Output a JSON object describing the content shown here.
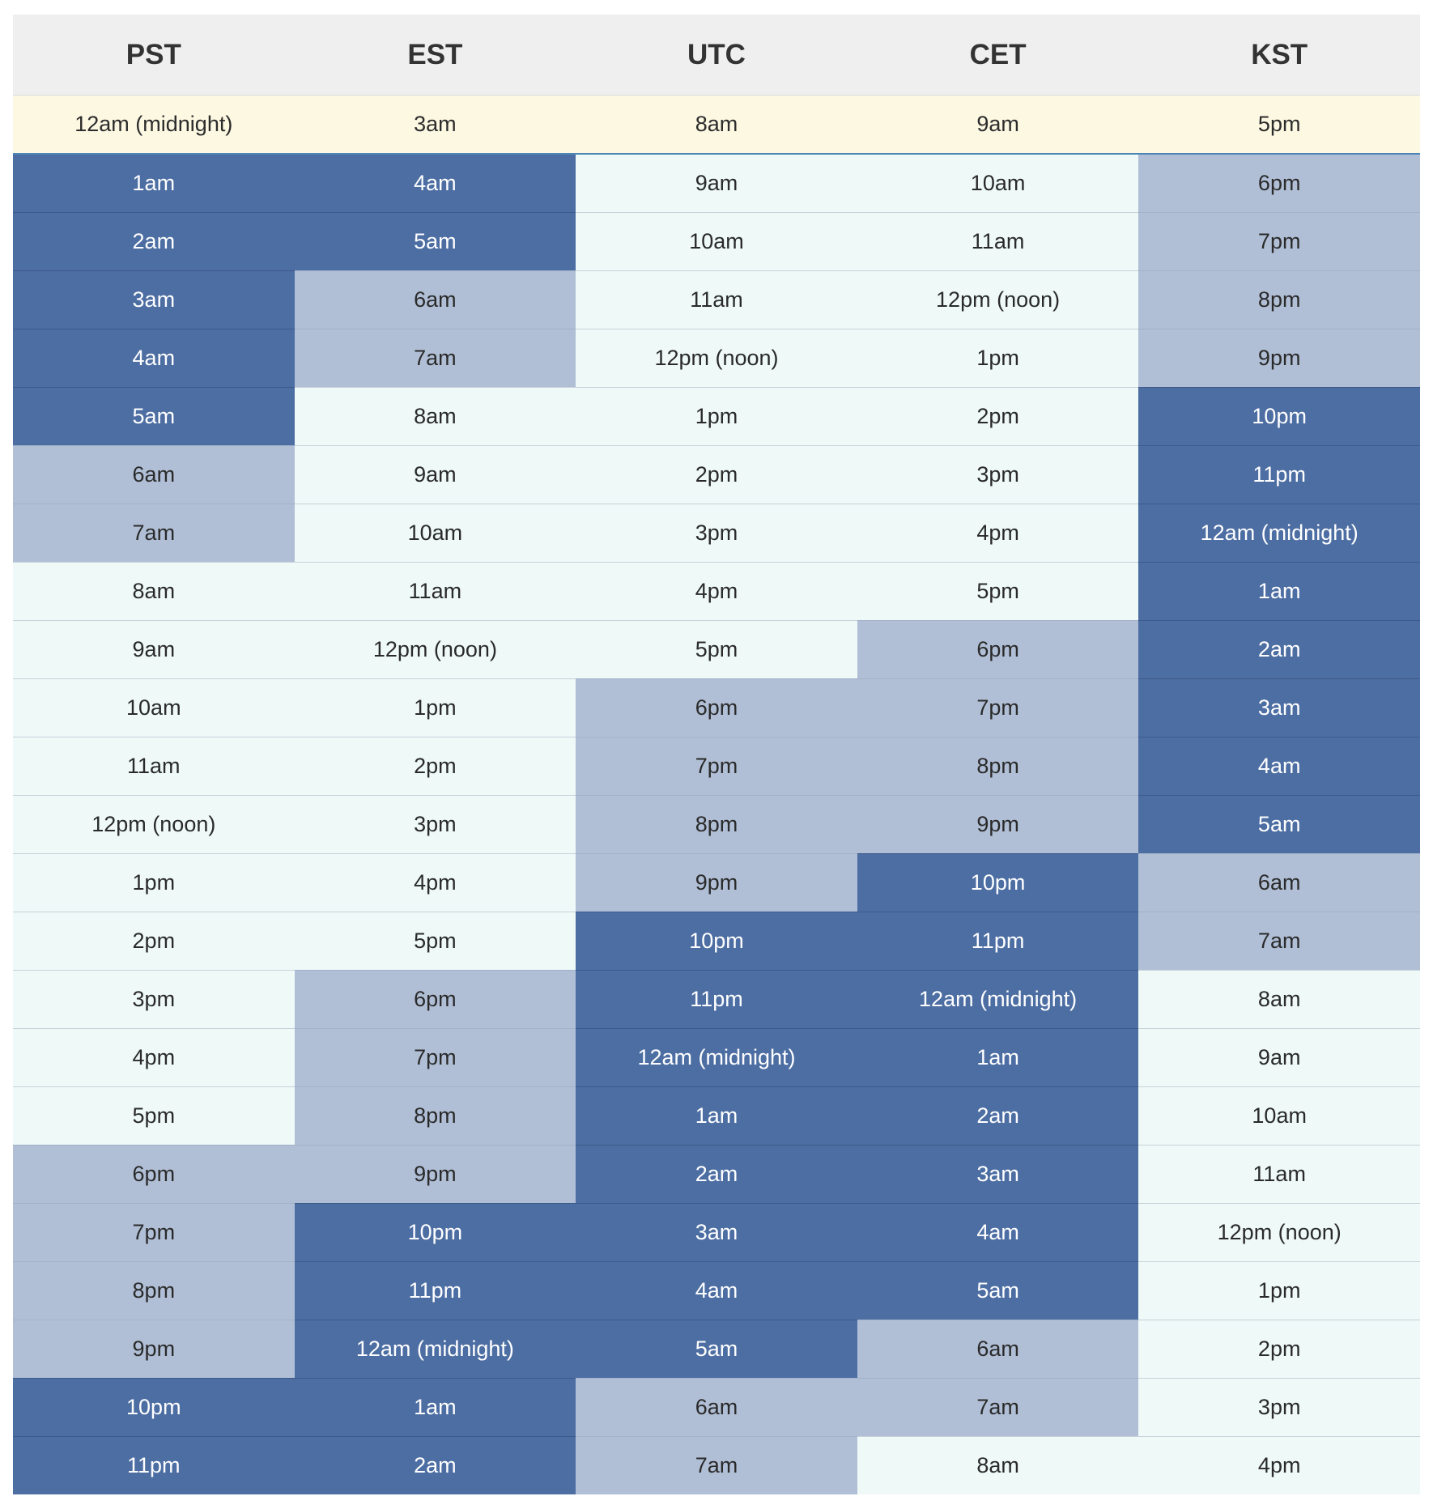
{
  "table": {
    "headers": [
      "PST",
      "EST",
      "UTC",
      "CET",
      "KST"
    ],
    "highlight_row": 0,
    "rows": [
      [
        "12am (midnight)",
        "3am",
        "8am",
        "9am",
        "5pm"
      ],
      [
        "1am",
        "4am",
        "9am",
        "10am",
        "6pm"
      ],
      [
        "2am",
        "5am",
        "10am",
        "11am",
        "7pm"
      ],
      [
        "3am",
        "6am",
        "11am",
        "12pm (noon)",
        "8pm"
      ],
      [
        "4am",
        "7am",
        "12pm (noon)",
        "1pm",
        "9pm"
      ],
      [
        "5am",
        "8am",
        "1pm",
        "2pm",
        "10pm"
      ],
      [
        "6am",
        "9am",
        "2pm",
        "3pm",
        "11pm"
      ],
      [
        "7am",
        "10am",
        "3pm",
        "4pm",
        "12am (midnight)"
      ],
      [
        "8am",
        "11am",
        "4pm",
        "5pm",
        "1am"
      ],
      [
        "9am",
        "12pm (noon)",
        "5pm",
        "6pm",
        "2am"
      ],
      [
        "10am",
        "1pm",
        "6pm",
        "7pm",
        "3am"
      ],
      [
        "11am",
        "2pm",
        "7pm",
        "8pm",
        "4am"
      ],
      [
        "12pm (noon)",
        "3pm",
        "8pm",
        "9pm",
        "5am"
      ],
      [
        "1pm",
        "4pm",
        "9pm",
        "10pm",
        "6am"
      ],
      [
        "2pm",
        "5pm",
        "10pm",
        "11pm",
        "7am"
      ],
      [
        "3pm",
        "6pm",
        "11pm",
        "12am (midnight)",
        "8am"
      ],
      [
        "4pm",
        "7pm",
        "12am (midnight)",
        "1am",
        "9am"
      ],
      [
        "5pm",
        "8pm",
        "1am",
        "2am",
        "10am"
      ],
      [
        "6pm",
        "9pm",
        "2am",
        "3am",
        "11am"
      ],
      [
        "7pm",
        "10pm",
        "3am",
        "4am",
        "12pm (noon)"
      ],
      [
        "8pm",
        "11pm",
        "4am",
        "5am",
        "1pm"
      ],
      [
        "9pm",
        "12am (midnight)",
        "5am",
        "6am",
        "2pm"
      ],
      [
        "10pm",
        "1am",
        "6am",
        "7am",
        "3pm"
      ],
      [
        "11pm",
        "2am",
        "7am",
        "8am",
        "4pm"
      ]
    ]
  },
  "colors": {
    "header_bg": "#efefef",
    "highlight_bg": "#fcf8e2",
    "day_bg": "#eef9f8",
    "dusk_bg": "#b0bfd6",
    "night_bg": "#4d6ea3",
    "night_text": "#ffffff",
    "text": "#2a2a2a"
  }
}
